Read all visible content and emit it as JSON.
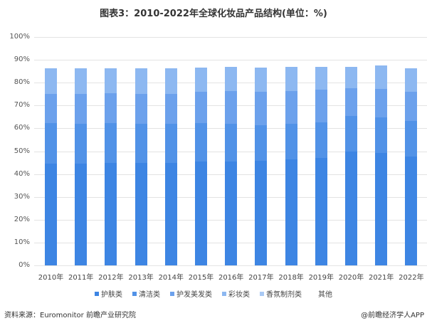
{
  "title": "图表3：2010-2022年全球化妆品产品结构(单位：%)",
  "footer": {
    "source": "资料来源：Euromonitor 前瞻产业研究院",
    "credit": "@前瞻经济学人APP"
  },
  "chart_data": {
    "type": "bar",
    "stacked": true,
    "title": "图表3：2010-2022年全球化妆品产品结构(单位：%)",
    "xlabel": "",
    "ylabel": "",
    "ylim": [
      0,
      100
    ],
    "yticks": [
      "0%",
      "10%",
      "20%",
      "30%",
      "40%",
      "50%",
      "60%",
      "70%",
      "80%",
      "90%",
      "100%"
    ],
    "grid": true,
    "legend_position": "bottom",
    "categories": [
      "2010年",
      "2011年",
      "2012年",
      "2013年",
      "2014年",
      "2015年",
      "2016年",
      "2017年",
      "2018年",
      "2019年",
      "2020年",
      "2021年",
      "2022年"
    ],
    "legend": [
      "护肤类",
      "清洁类",
      "护发美发类",
      "彩妆类",
      "香氛制剂类",
      "其他"
    ],
    "series": [
      {
        "name": "护肤类",
        "color": "#3D85E3",
        "values": [
          44.5,
          44.5,
          44.9,
          44.9,
          44.9,
          45.5,
          45.5,
          45.8,
          46.4,
          47.0,
          49.8,
          49.2,
          47.7
        ]
      },
      {
        "name": "清洁类",
        "color": "#5192E7",
        "values": [
          17.8,
          17.5,
          17.4,
          17.1,
          17.1,
          16.8,
          16.5,
          15.6,
          15.6,
          15.6,
          15.6,
          15.6,
          15.5
        ]
      },
      {
        "name": "护发美发类",
        "color": "#6CA1EC",
        "values": [
          12.8,
          13.1,
          13.1,
          13.1,
          13.1,
          13.7,
          14.3,
          14.6,
          14.3,
          14.3,
          12.2,
          12.5,
          12.8
        ]
      },
      {
        "name": "彩妆类",
        "color": "#8DB8F1",
        "values": [
          11.2,
          11.2,
          10.9,
          11.2,
          11.2,
          10.6,
          10.6,
          10.6,
          10.6,
          10.0,
          9.3,
          10.2,
          10.3
        ]
      },
      {
        "name": "香氛制剂类",
        "color": "#A9C9F4",
        "values": [
          0,
          0,
          0,
          0,
          0,
          0,
          0,
          0,
          0,
          0,
          0,
          0,
          0
        ]
      },
      {
        "name": "其他",
        "color": "#FFFFFF",
        "values": [
          13.7,
          13.7,
          13.7,
          13.7,
          13.7,
          13.4,
          13.1,
          13.4,
          13.1,
          13.1,
          13.1,
          12.5,
          13.7
        ]
      }
    ]
  }
}
